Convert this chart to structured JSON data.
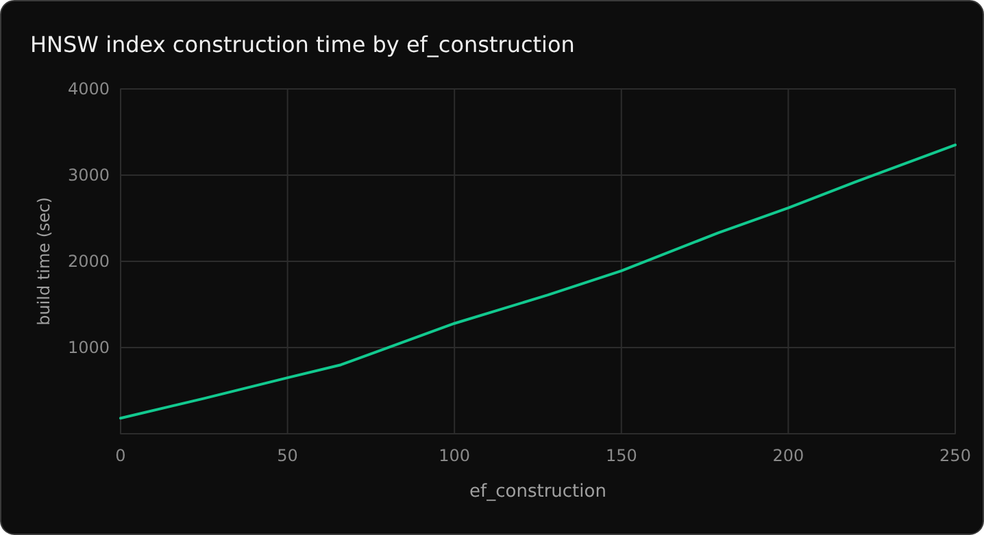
{
  "chart_data": {
    "type": "line",
    "title": "HNSW index construction time by ef_construction",
    "xlabel": "ef_construction",
    "ylabel": "build time (sec)",
    "series": [
      {
        "color": "#12c98f",
        "x": [
          0,
          25,
          50,
          66,
          100,
          128,
          150,
          179,
          200,
          220,
          250
        ],
        "values": [
          180,
          410,
          650,
          800,
          1280,
          1610,
          1890,
          2330,
          2620,
          2920,
          3350
        ]
      }
    ],
    "xlim": [
      0,
      250
    ],
    "xticks": [
      0,
      50,
      100,
      150,
      200,
      250
    ],
    "ylim": [
      0,
      4000
    ],
    "yticks": [
      {
        "value": 0,
        "label": null
      },
      1000,
      2000,
      3000,
      4000
    ],
    "grid": true,
    "marker": "none",
    "line_style": "solid"
  }
}
